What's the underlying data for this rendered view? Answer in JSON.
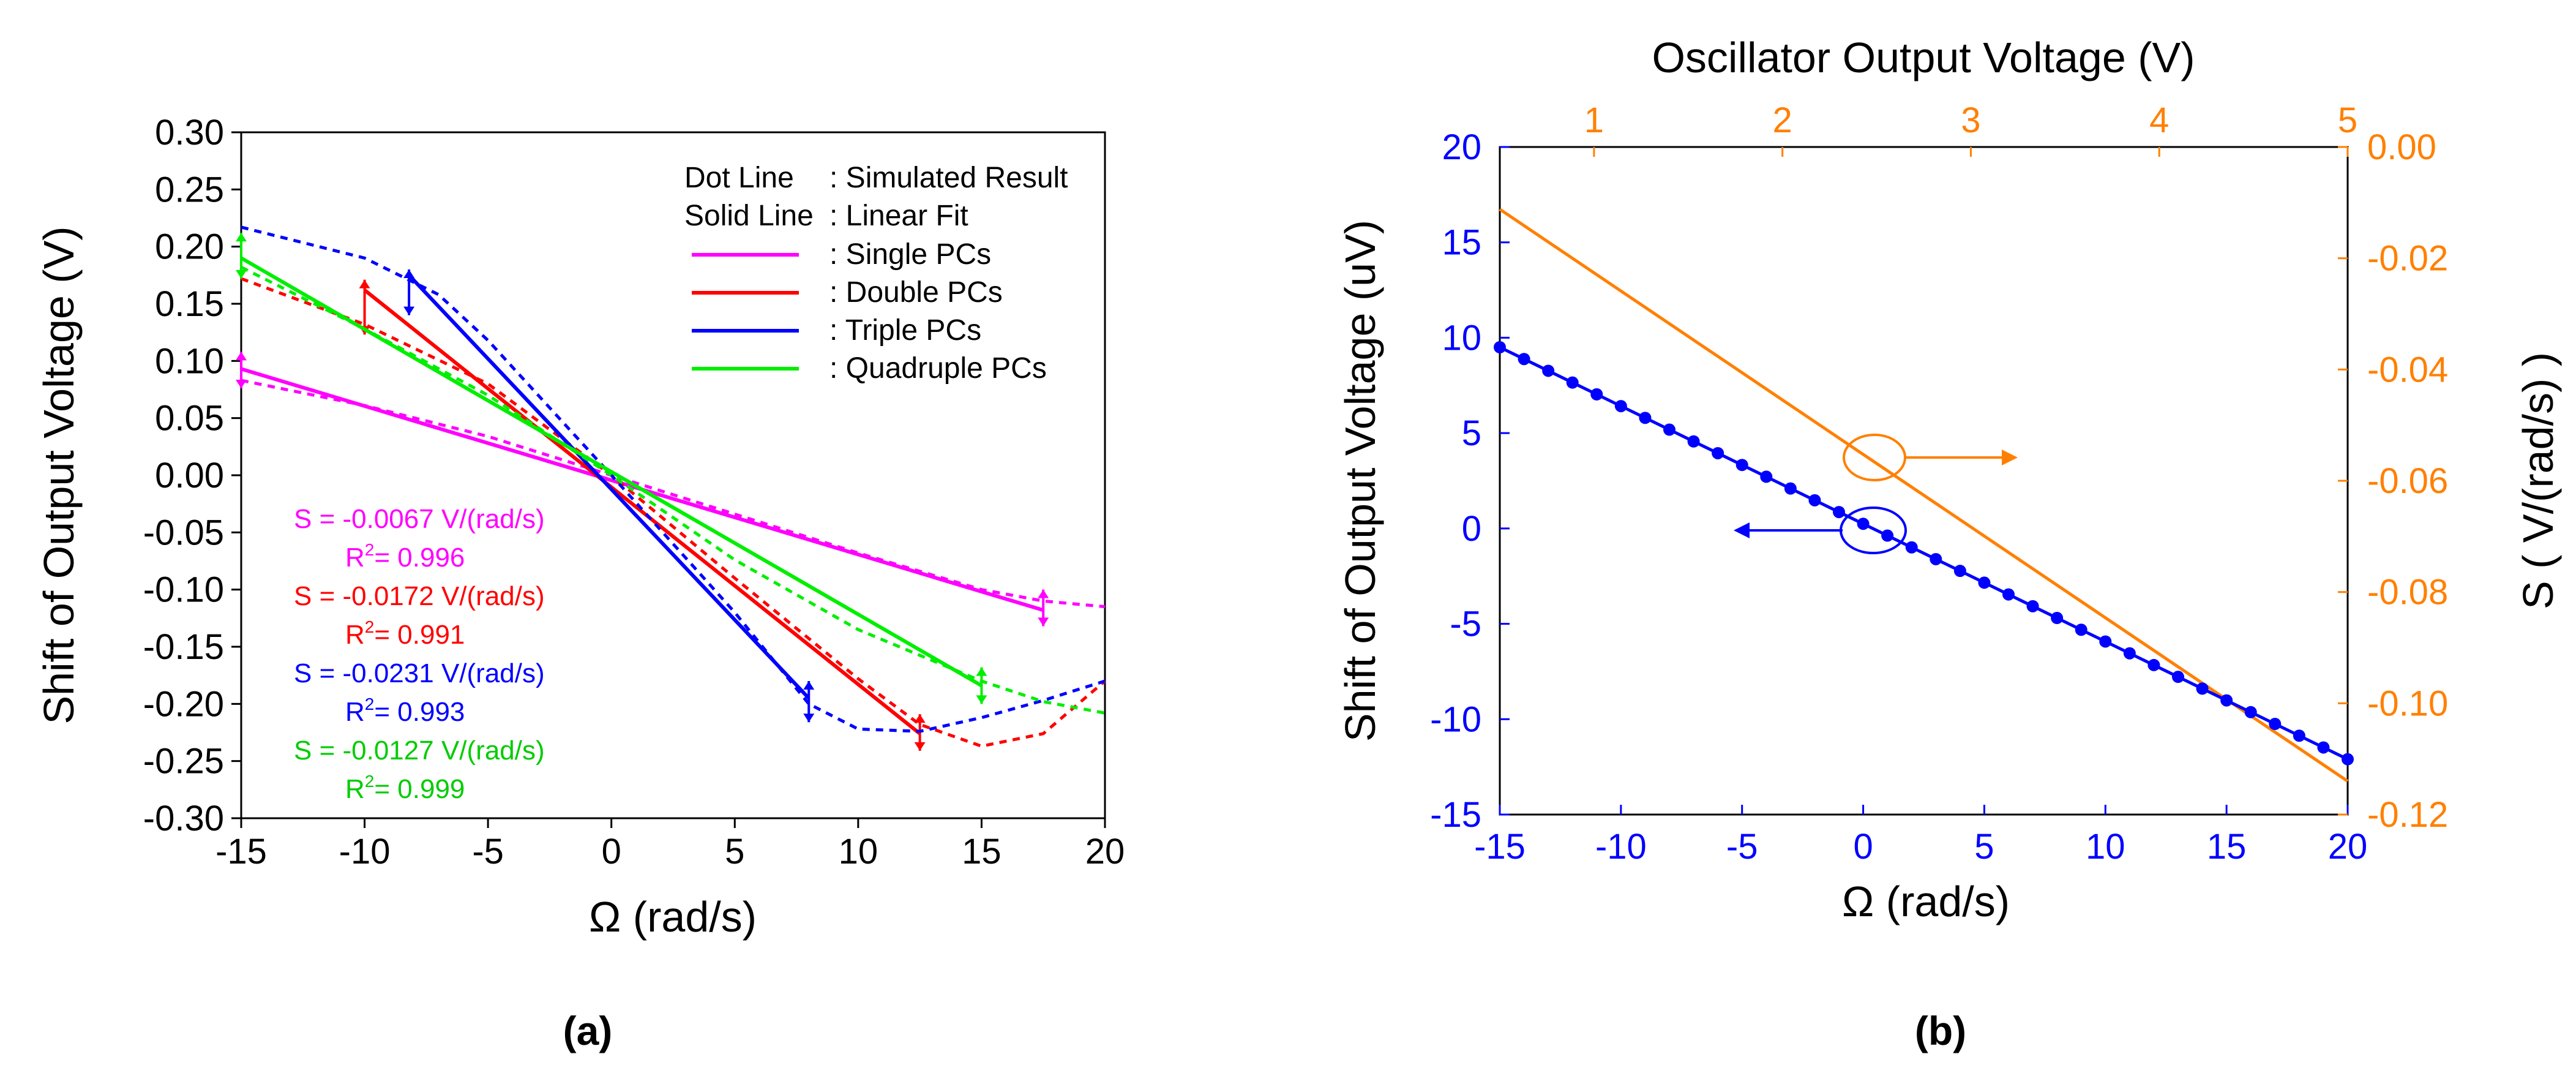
{
  "chart_data": [
    {
      "panel": "a",
      "type": "line",
      "caption": "(a)",
      "xlabel": "Ω (rad/s)",
      "ylabel": "Shift of Output Voltage (V)",
      "xlim": [
        -15,
        20
      ],
      "ylim": [
        -0.3,
        0.3
      ],
      "xticks": [
        "-15",
        "-10",
        "-5",
        "0",
        "5",
        "10",
        "15",
        "20"
      ],
      "yticks": [
        "0.30",
        "0.25",
        "0.20",
        "0.15",
        "0.10",
        "0.05",
        "0.00",
        "-0.05",
        "-0.10",
        "-0.15",
        "-0.20",
        "-0.25",
        "-0.30"
      ],
      "legend": {
        "dot_line_key": "Dot Line",
        "dot_line_desc": ": Simulated Result",
        "solid_line_key": "Solid Line",
        "solid_line_desc": ": Linear Fit"
      },
      "series": [
        {
          "name": "Single PCs",
          "label": ": Single PCs",
          "color": "#ff00ff",
          "fit": [
            [
              -15,
              0.093
            ],
            [
              17.5,
              -0.118
            ]
          ],
          "simulated": [
            [
              -15,
              0.083
            ],
            [
              -10,
              0.061
            ],
            [
              -5,
              0.034
            ],
            [
              0,
              0.0
            ],
            [
              5,
              -0.034
            ],
            [
              10,
              -0.068
            ],
            [
              15,
              -0.1
            ],
            [
              17.5,
              -0.11
            ],
            [
              20,
              -0.115
            ]
          ],
          "error_bars": [
            [
              -15,
              0.092,
              0.016
            ],
            [
              17.5,
              -0.116,
              0.016
            ]
          ],
          "slope_text": "S = -0.0067 V/(rad/s)",
          "r2_text": "R",
          "r2_value": "= 0.996"
        },
        {
          "name": "Double PCs",
          "label": ": Double PCs",
          "color": "#ff0000",
          "fit": [
            [
              -10,
              0.162
            ],
            [
              12.5,
              -0.226
            ]
          ],
          "simulated": [
            [
              -15,
              0.172
            ],
            [
              -10,
              0.132
            ],
            [
              -5,
              0.08
            ],
            [
              0,
              0.0
            ],
            [
              5,
              -0.09
            ],
            [
              10,
              -0.178
            ],
            [
              12.5,
              -0.218
            ],
            [
              15,
              -0.237
            ],
            [
              17.5,
              -0.226
            ],
            [
              20,
              -0.18
            ]
          ],
          "error_bars": [
            [
              -10,
              0.147,
              0.024
            ],
            [
              12.5,
              -0.225,
              0.016
            ]
          ],
          "slope_text": "S = -0.0172 V/(rad/s)",
          "r2_text": "R",
          "r2_value": "= 0.991"
        },
        {
          "name": "Triple PCs",
          "label": ": Triple PCs",
          "color": "#0000ff",
          "fit": [
            [
              -8.2,
              0.175
            ],
            [
              8,
              -0.195
            ]
          ],
          "simulated": [
            [
              -15,
              0.217
            ],
            [
              -10,
              0.19
            ],
            [
              -7,
              0.158
            ],
            [
              -5,
              0.118
            ],
            [
              0,
              0.0
            ],
            [
              5,
              -0.12
            ],
            [
              8,
              -0.2
            ],
            [
              10,
              -0.222
            ],
            [
              12.5,
              -0.224
            ],
            [
              15,
              -0.212
            ],
            [
              17.5,
              -0.197
            ],
            [
              20,
              -0.18
            ]
          ],
          "error_bars": [
            [
              -8.2,
              0.16,
              0.02
            ],
            [
              8,
              -0.198,
              0.018
            ]
          ],
          "slope_text": "S = -0.0231 V/(rad/s)",
          "r2_text": "R",
          "r2_value": "= 0.993"
        },
        {
          "name": "Quadruple PCs",
          "label": ": Quadruple PCs",
          "color": "#00ee00",
          "fit": [
            [
              -15,
              0.19
            ],
            [
              15,
              -0.184
            ]
          ],
          "simulated": [
            [
              -15,
              0.182
            ],
            [
              -10,
              0.128
            ],
            [
              -5,
              0.07
            ],
            [
              0,
              0.0
            ],
            [
              5,
              -0.074
            ],
            [
              10,
              -0.135
            ],
            [
              15,
              -0.18
            ],
            [
              17.5,
              -0.198
            ],
            [
              20,
              -0.208
            ]
          ],
          "error_bars": [
            [
              -15,
              0.192,
              0.02
            ],
            [
              15,
              -0.184,
              0.016
            ]
          ],
          "slope_text": "S = -0.0127 V/(rad/s)",
          "r2_text": "R",
          "r2_value": "= 0.999"
        }
      ]
    },
    {
      "panel": "b",
      "type": "line",
      "caption": "(b)",
      "xlabel": "Ω (rad/s)",
      "ylabel": "Shift of Output Voltage (uV)",
      "top_xlabel": "Oscillator Output Voltage (V)",
      "right_ylabel": "S ( V/(rad/s) )",
      "xlim": [
        -15,
        20
      ],
      "ylim": [
        -15,
        20
      ],
      "top_xlim": [
        0.5,
        5
      ],
      "right_ylim": [
        -0.12,
        0.0
      ],
      "xticks": [
        "-15",
        "-10",
        "-5",
        "0",
        "5",
        "10",
        "15",
        "20"
      ],
      "yticks": [
        "20",
        "15",
        "10",
        "5",
        "0",
        "-5",
        "-10",
        "-15"
      ],
      "top_xticks": [
        "1",
        "2",
        "3",
        "4",
        "5"
      ],
      "right_yticks": [
        "0.00",
        "-0.02",
        "-0.04",
        "-0.06",
        "-0.08",
        "-0.10",
        "-0.12"
      ],
      "series": [
        {
          "name": "Shift of Output Voltage",
          "axis": "left/bottom",
          "color": "#0000ff",
          "x": [
            -15,
            20
          ],
          "y": [
            9.5,
            -12.1
          ],
          "marker_step": 1
        },
        {
          "name": "S",
          "axis": "right/top",
          "color": "#ff8000",
          "x": [
            0.5,
            5
          ],
          "y": [
            -0.0112,
            -0.114
          ]
        }
      ]
    }
  ]
}
